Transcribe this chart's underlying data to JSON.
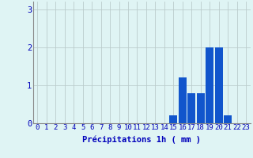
{
  "categories": [
    0,
    1,
    2,
    3,
    4,
    5,
    6,
    7,
    8,
    9,
    10,
    11,
    12,
    13,
    14,
    15,
    16,
    17,
    18,
    19,
    20,
    21,
    22,
    23
  ],
  "values": [
    0,
    0,
    0,
    0,
    0,
    0,
    0,
    0,
    0,
    0,
    0,
    0,
    0,
    0,
    0,
    0.2,
    1.2,
    0.8,
    0.8,
    2.0,
    2.0,
    0.2,
    0,
    0
  ],
  "bar_color": "#1155cc",
  "background_color": "#dff4f4",
  "grid_color": "#bbcccc",
  "xlabel": "Précipitations 1h ( mm )",
  "xlabel_color": "#0000bb",
  "tick_color": "#0000bb",
  "ylim": [
    0,
    3.2
  ],
  "xlim": [
    -0.5,
    23.5
  ],
  "yticks": [
    0,
    1,
    2,
    3
  ],
  "xticks": [
    0,
    1,
    2,
    3,
    4,
    5,
    6,
    7,
    8,
    9,
    10,
    11,
    12,
    13,
    14,
    15,
    16,
    17,
    18,
    19,
    20,
    21,
    22,
    23
  ],
  "xlabel_fontsize": 7.5,
  "tick_fontsize": 6.5,
  "ytick_fontsize": 7.5
}
